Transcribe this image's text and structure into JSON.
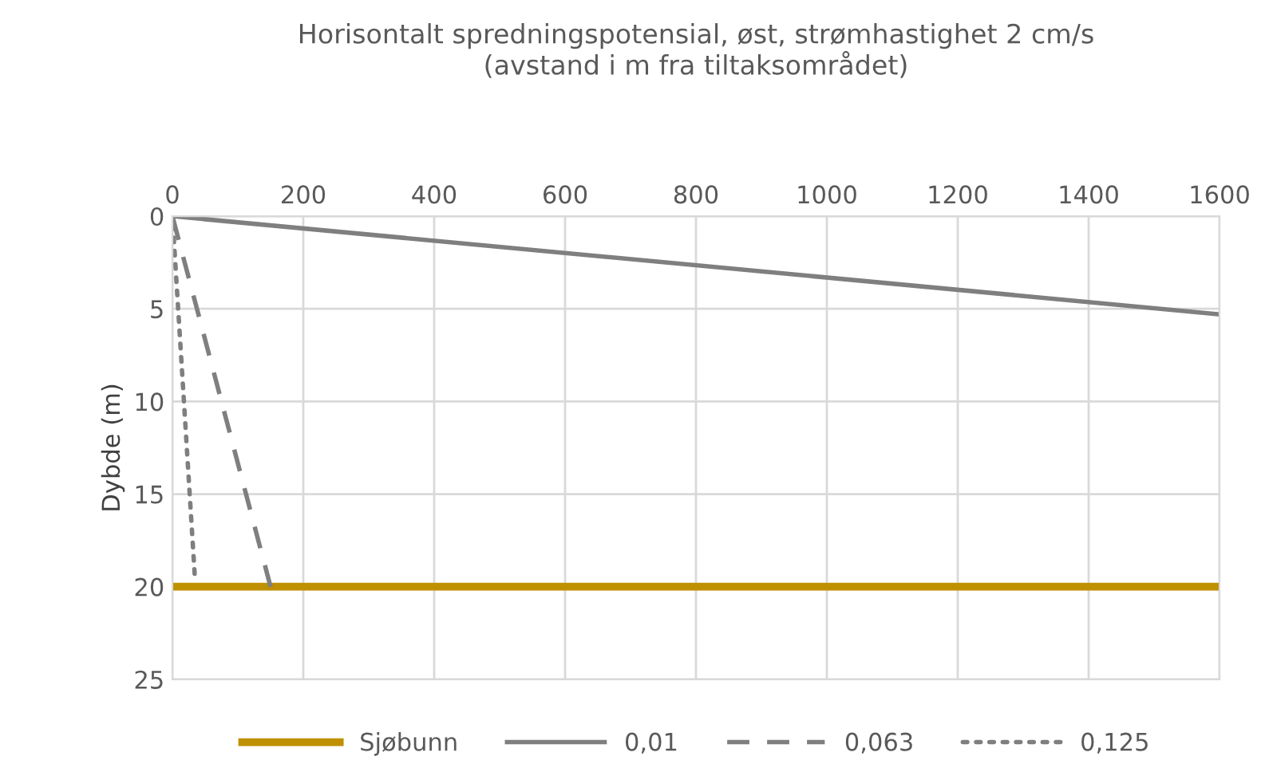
{
  "chart_data": {
    "type": "line",
    "title": "Horisontalt spredningspotensial, øst, strømhastighet 2 cm/s\n(avstand i m fra tiltaksområdet)",
    "ylabel": "Dybde (m)",
    "series": [
      {
        "name": "Sjøbunn",
        "color": "#bf9000",
        "x": [
          0,
          1600
        ],
        "values": [
          20,
          20
        ],
        "line_style": "solid"
      },
      {
        "name": "0,01",
        "color": "#7f7f7f",
        "x": [
          0,
          1600
        ],
        "values": [
          0,
          5.3
        ],
        "line_style": "solid"
      },
      {
        "name": "0,063",
        "color": "#7f7f7f",
        "x": [
          0,
          150
        ],
        "values": [
          0,
          20
        ],
        "line_style": "dashed"
      },
      {
        "name": "0,125",
        "color": "#7f7f7f",
        "x": [
          0,
          34
        ],
        "values": [
          0,
          19.3
        ],
        "line_style": "dotted"
      }
    ],
    "xlim": [
      0,
      1600
    ],
    "xticks": [
      0,
      200,
      400,
      600,
      800,
      1000,
      1200,
      1400,
      1600
    ],
    "ylim": [
      25,
      0
    ],
    "yticks": [
      0,
      5,
      10,
      15,
      20,
      25
    ],
    "grid": true,
    "legend": "bottom",
    "marker": "none"
  }
}
